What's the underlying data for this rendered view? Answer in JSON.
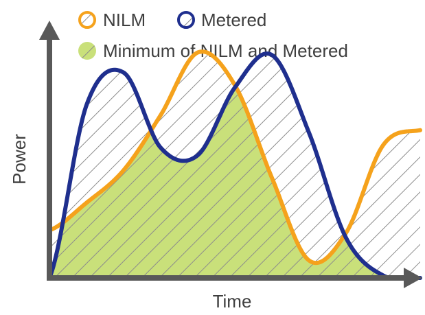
{
  "chart_data": {
    "type": "line",
    "title": "",
    "xlabel": "Time",
    "ylabel": "Power",
    "grid": false,
    "legend_position": "top",
    "legend": [
      {
        "label": "NILM",
        "marker": "ring",
        "color": "#f5a21c"
      },
      {
        "label": "Metered",
        "marker": "ring",
        "color": "#1f2f8e"
      },
      {
        "label": "Minimum of NILM and Metered",
        "marker": "filled-hatched",
        "color": "#c9e07a"
      }
    ],
    "x": [
      0,
      1,
      2,
      3,
      4,
      5,
      6,
      7,
      8,
      9,
      10
    ],
    "xlim": [
      0,
      10
    ],
    "ylim": [
      0,
      10
    ],
    "series": [
      {
        "name": "NILM",
        "color": "#f5a21c",
        "values": [
          1.9,
          3.0,
          4.3,
          6.5,
          9.0,
          7.7,
          4.0,
          0.7,
          1.8,
          5.3,
          5.9
        ]
      },
      {
        "name": "Metered",
        "color": "#1f2f8e",
        "values": [
          0.0,
          6.9,
          8.2,
          5.2,
          4.9,
          7.6,
          8.9,
          5.8,
          1.6,
          0.1,
          0.0
        ]
      }
    ],
    "minimum_fill_color": "#c9e07a",
    "hatch_color": "#8c8c8c",
    "axis_color": "#595959"
  }
}
